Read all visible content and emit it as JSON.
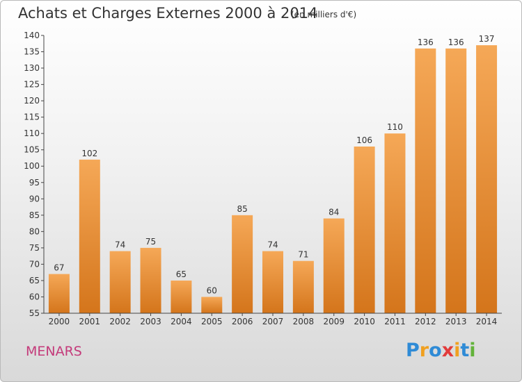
{
  "header": {
    "title": "Achats et Charges Externes 2000 à 2014",
    "subtitle": "(en milliers d'€)"
  },
  "footer": {
    "commune": "MENARS",
    "brand": "Proxiti",
    "brand_letters": [
      "P",
      "r",
      "o",
      "x",
      "i",
      "t",
      "i"
    ],
    "brand_colors": [
      "#2f8bd6",
      "#f0a020",
      "#2f8bd6",
      "#e23b3b",
      "#f0a020",
      "#2f8bd6",
      "#63b33a"
    ]
  },
  "colors": {
    "bar_top": "#f5a857",
    "bar_bottom": "#d4751b",
    "title_text": "#333333",
    "commune_text": "#c43a7a",
    "axis": "#444444"
  },
  "chart_data": {
    "type": "bar",
    "categories": [
      "2000",
      "2001",
      "2002",
      "2003",
      "2004",
      "2005",
      "2006",
      "2007",
      "2008",
      "2009",
      "2010",
      "2011",
      "2012",
      "2013",
      "2014"
    ],
    "values": [
      67,
      102,
      74,
      75,
      65,
      60,
      85,
      74,
      71,
      84,
      106,
      110,
      136,
      136,
      137
    ],
    "title": "Achats et Charges Externes 2000 à 2014",
    "xlabel": "",
    "ylabel": "",
    "ylim": [
      55,
      140
    ],
    "yticks": [
      55,
      60,
      65,
      70,
      75,
      80,
      85,
      90,
      95,
      100,
      105,
      110,
      115,
      120,
      125,
      130,
      135,
      140
    ],
    "grid": false,
    "legend": "none"
  }
}
